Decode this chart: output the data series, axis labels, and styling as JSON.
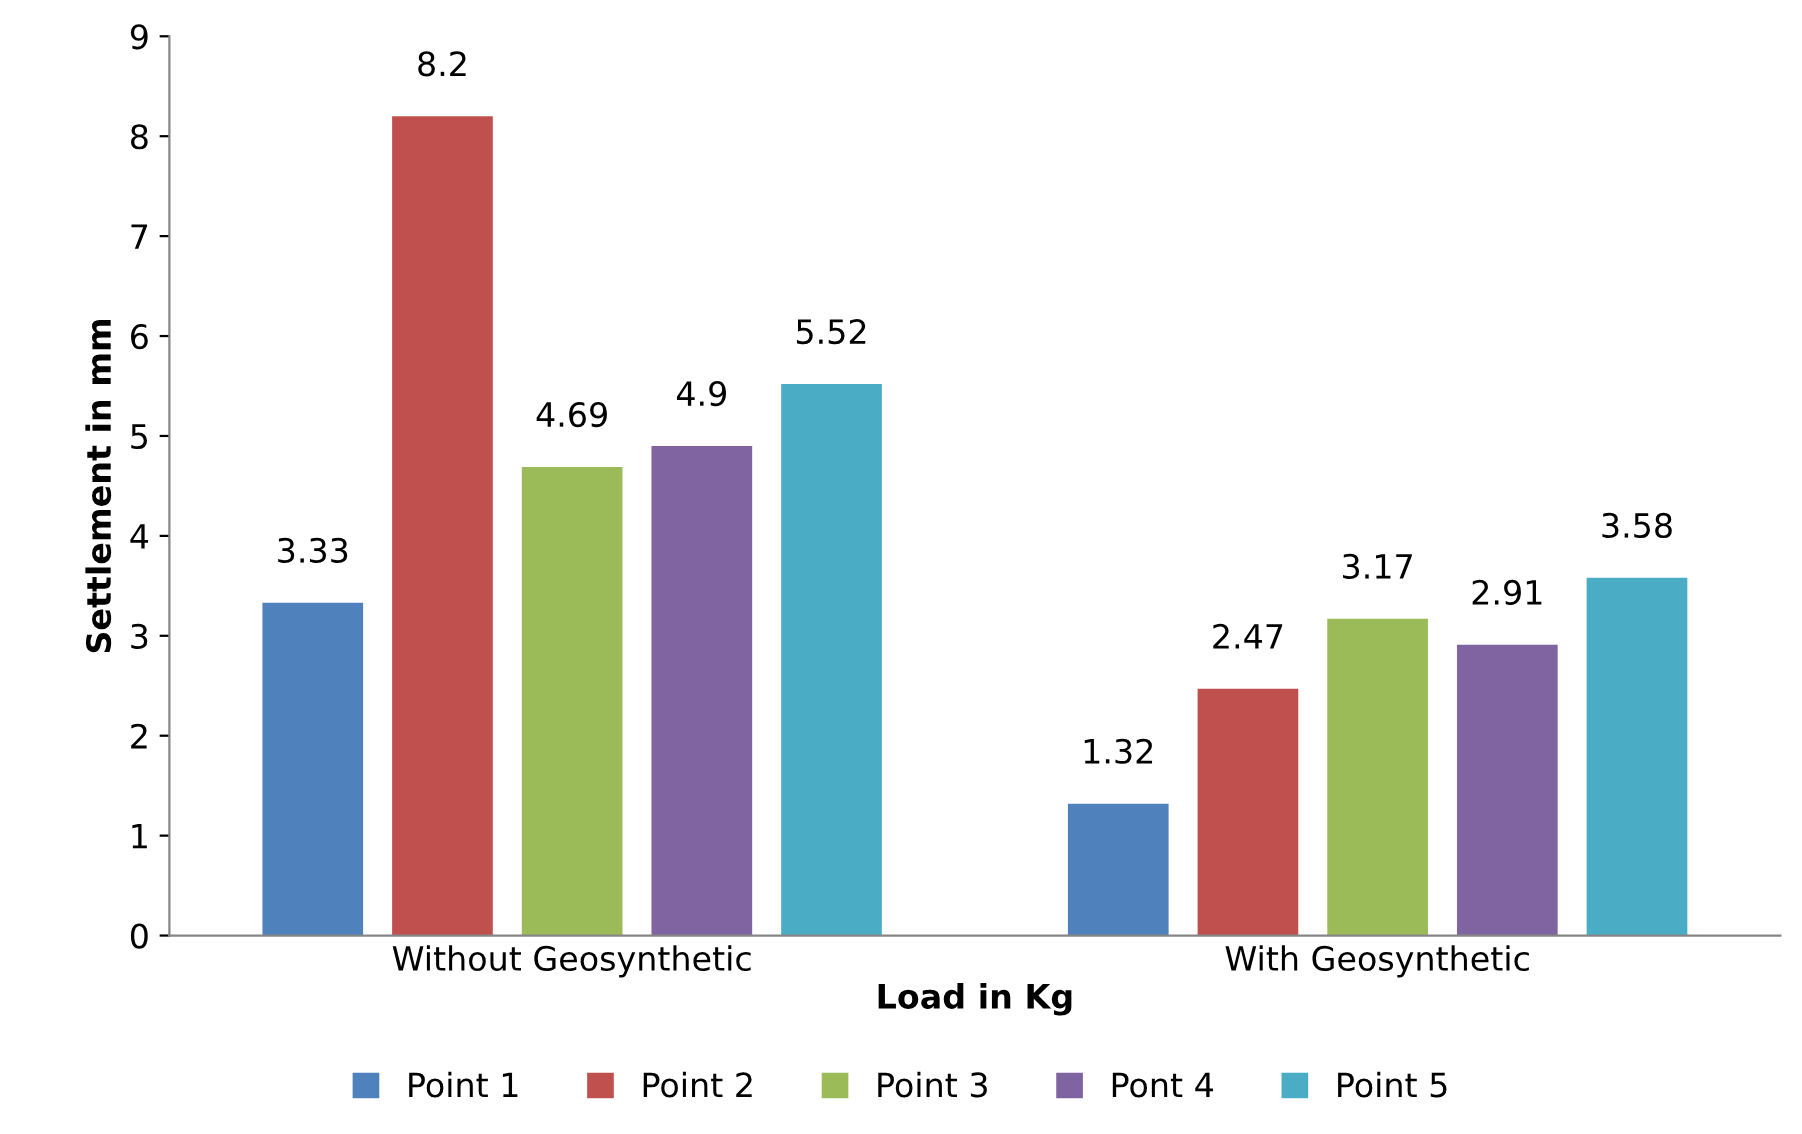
{
  "chart_data": {
    "type": "bar",
    "xlabel": "Load in Kg",
    "ylabel": "Settlement in mm",
    "categories": [
      "Without Geosynthetic",
      "With Geosynthetic"
    ],
    "series": [
      {
        "name": "Point 1",
        "color": "#4f81bd",
        "values": [
          3.33,
          1.32
        ]
      },
      {
        "name": "Point 2",
        "color": "#c0504d",
        "values": [
          8.2,
          2.47
        ]
      },
      {
        "name": "Point 3",
        "color": "#9bbb59",
        "values": [
          4.69,
          3.17
        ]
      },
      {
        "name": "Pont 4",
        "color": "#8064a2",
        "values": [
          4.9,
          2.91
        ]
      },
      {
        "name": "Point 5",
        "color": "#4bacc6",
        "values": [
          5.52,
          3.58
        ]
      }
    ],
    "ylim": [
      0,
      9
    ],
    "yticks": [
      0,
      1,
      2,
      3,
      4,
      5,
      6,
      7,
      8,
      9
    ],
    "grid": false,
    "legend": "bottom",
    "data_labels": true
  }
}
